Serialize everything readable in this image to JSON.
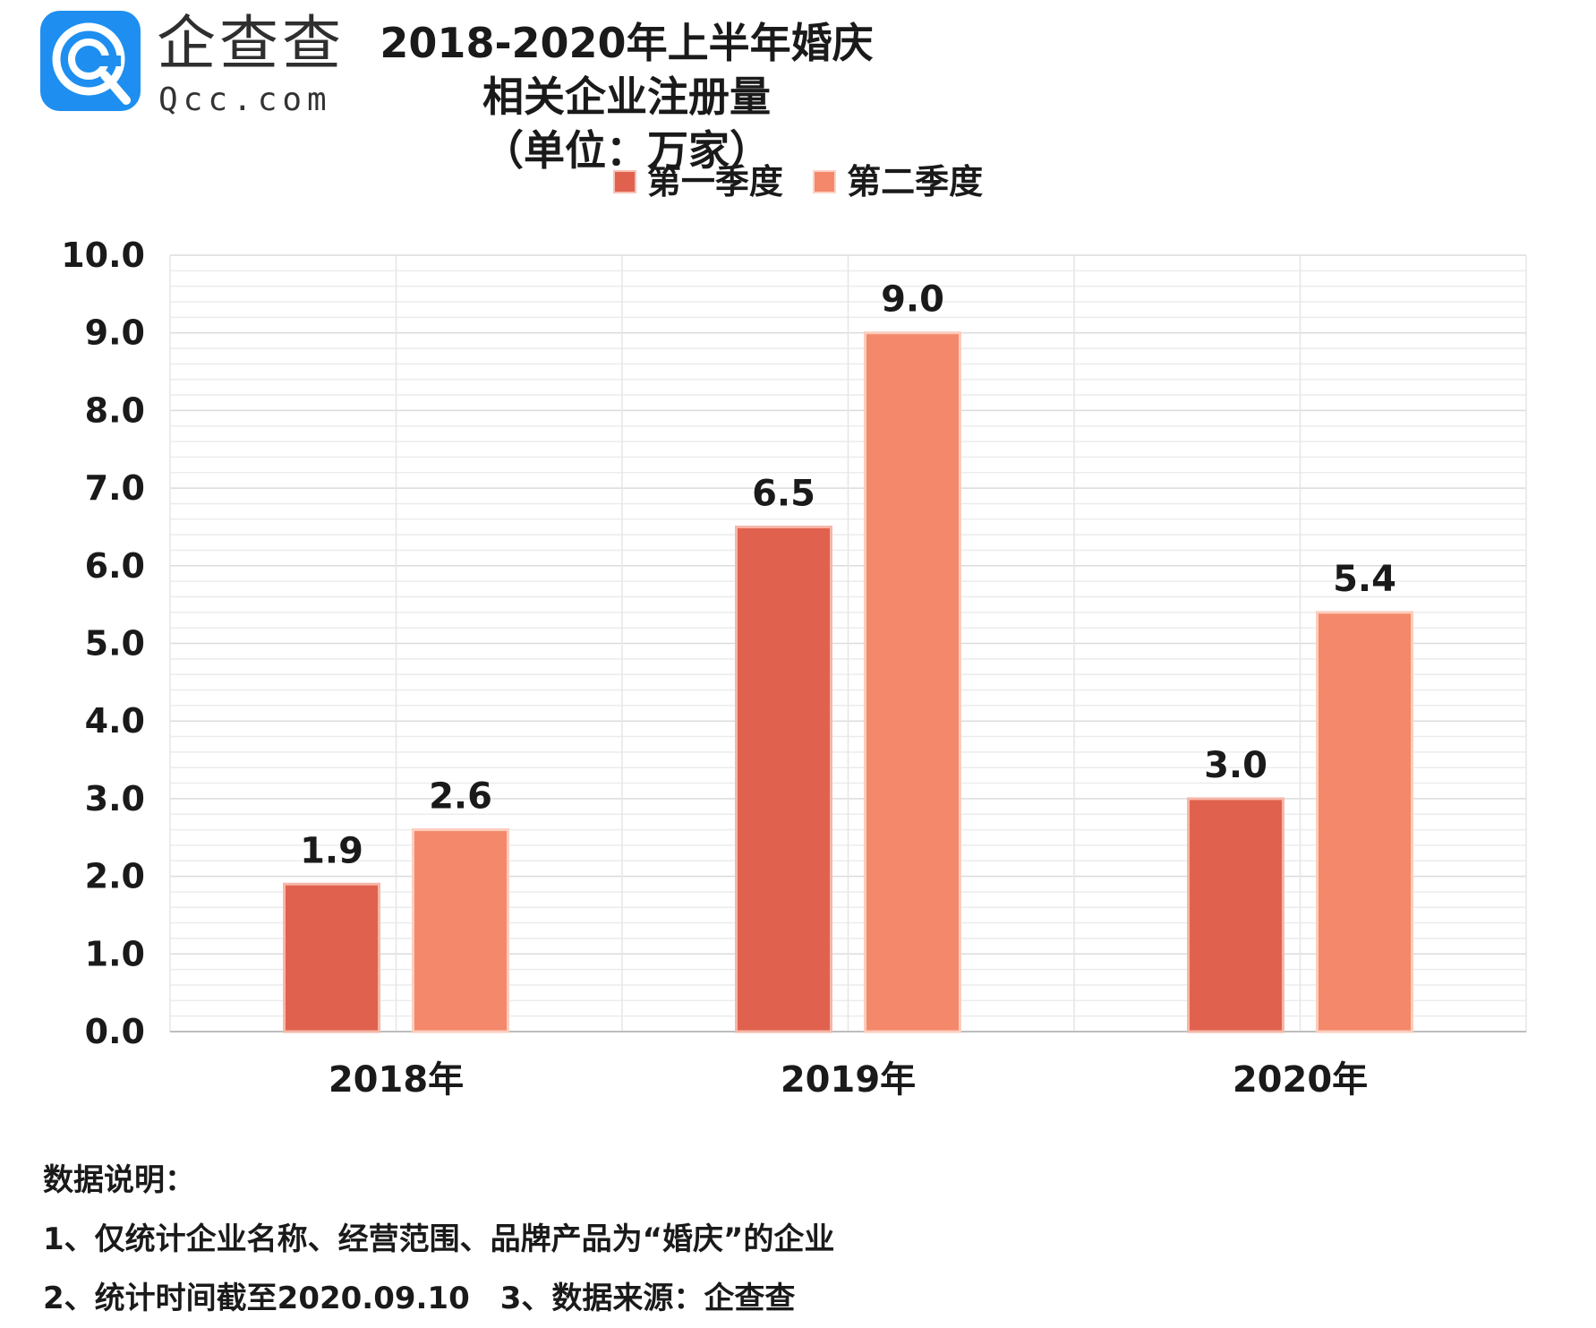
{
  "logo": {
    "cn": "企查查",
    "en": "Qcc.com"
  },
  "title": {
    "line1": "2018-2020年上半年婚庆相关企业注册量",
    "line2": "（单位：万家）"
  },
  "legend": [
    {
      "label": "第一季度",
      "color": "#e0624e"
    },
    {
      "label": "第二季度",
      "color": "#f4886a"
    }
  ],
  "chart_data": {
    "type": "bar",
    "title": "2018-2020年上半年婚庆相关企业注册量",
    "subtitle": "（单位：万家）",
    "categories": [
      "2018年",
      "2019年",
      "2020年"
    ],
    "series": [
      {
        "name": "第一季度",
        "values": [
          1.9,
          6.5,
          3.0
        ],
        "labels": [
          "1.9",
          "6.5",
          "3.0"
        ],
        "color": "#e0624e"
      },
      {
        "name": "第二季度",
        "values": [
          2.6,
          9.0,
          5.4
        ],
        "labels": [
          "2.6",
          "9.0",
          "5.4"
        ],
        "color": "#f4886a"
      }
    ],
    "yticks": [
      "0.0",
      "1.0",
      "2.0",
      "3.0",
      "4.0",
      "5.0",
      "6.0",
      "7.0",
      "8.0",
      "9.0",
      "10.0"
    ],
    "ylim": [
      0,
      10
    ],
    "xlabel": "",
    "ylabel": "",
    "grid": true
  },
  "notes": {
    "heading": "数据说明：",
    "line1": "1、仅统计企业名称、经营范围、品牌产品为“婚庆”的企业",
    "line2": "2、统计时间截至2020.09.10　3、数据来源：企查查"
  }
}
